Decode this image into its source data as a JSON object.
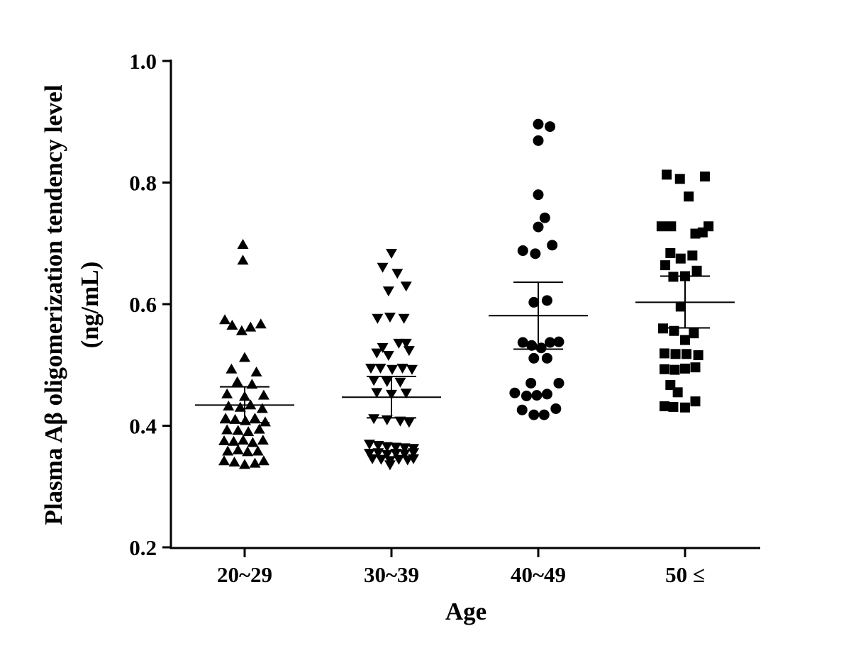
{
  "chart_data": {
    "type": "scatter",
    "xlabel": "Age",
    "ylabel_line1": "Plasma Aβ  oligomerization tendency level",
    "ylabel_line2": "(ng/mL)",
    "ylim": [
      0.2,
      1.0
    ],
    "yticks": [
      0.2,
      0.4,
      0.6,
      0.8,
      1.0
    ],
    "ytick_labels": [
      "0.2",
      "0.4",
      "0.6",
      "0.8",
      "1.0"
    ],
    "categories": [
      "20~29",
      "30~39",
      "40~49",
      "50 ≤"
    ],
    "grid": false,
    "legend": "none",
    "color": "#000000",
    "series": [
      {
        "category": "20~29",
        "marker": "triangle-up",
        "mean": 0.434,
        "sem_upper": 0.464,
        "sem_lower": 0.405,
        "points": [
          [
            -0.012,
            0.698
          ],
          [
            -0.012,
            0.672
          ],
          [
            -0.135,
            0.574
          ],
          [
            -0.085,
            0.565
          ],
          [
            -0.02,
            0.556
          ],
          [
            0.04,
            0.562
          ],
          [
            0.11,
            0.567
          ],
          [
            0.0,
            0.512
          ],
          [
            -0.09,
            0.493
          ],
          [
            0.08,
            0.488
          ],
          [
            -0.05,
            0.472
          ],
          [
            0.05,
            0.468
          ],
          [
            -0.12,
            0.452
          ],
          [
            0.0,
            0.448
          ],
          [
            0.13,
            0.45
          ],
          [
            -0.11,
            0.432
          ],
          [
            -0.03,
            0.43
          ],
          [
            0.04,
            0.434
          ],
          [
            0.12,
            0.428
          ],
          [
            -0.13,
            0.412
          ],
          [
            -0.065,
            0.41
          ],
          [
            0.005,
            0.408
          ],
          [
            0.07,
            0.412
          ],
          [
            0.14,
            0.406
          ],
          [
            -0.12,
            0.393
          ],
          [
            -0.045,
            0.392
          ],
          [
            0.025,
            0.39
          ],
          [
            0.1,
            0.394
          ],
          [
            -0.14,
            0.375
          ],
          [
            -0.075,
            0.374
          ],
          [
            -0.01,
            0.376
          ],
          [
            0.055,
            0.372
          ],
          [
            0.125,
            0.376
          ],
          [
            -0.115,
            0.358
          ],
          [
            -0.045,
            0.36
          ],
          [
            0.02,
            0.357
          ],
          [
            0.09,
            0.358
          ],
          [
            -0.14,
            0.342
          ],
          [
            -0.07,
            0.34
          ],
          [
            0.0,
            0.336
          ],
          [
            0.07,
            0.338
          ],
          [
            0.13,
            0.342
          ]
        ]
      },
      {
        "category": "30~39",
        "marker": "triangle-down",
        "mean": 0.447,
        "sem_upper": 0.481,
        "sem_lower": 0.413,
        "points": [
          [
            0.0,
            0.684
          ],
          [
            -0.06,
            0.661
          ],
          [
            0.04,
            0.651
          ],
          [
            0.1,
            0.63
          ],
          [
            -0.02,
            0.622
          ],
          [
            -0.095,
            0.577
          ],
          [
            -0.01,
            0.579
          ],
          [
            0.085,
            0.577
          ],
          [
            0.1,
            0.536
          ],
          [
            0.05,
            0.536
          ],
          [
            -0.06,
            0.529
          ],
          [
            0.12,
            0.524
          ],
          [
            -0.1,
            0.52
          ],
          [
            -0.02,
            0.516
          ],
          [
            -0.14,
            0.495
          ],
          [
            -0.075,
            0.495
          ],
          [
            0.005,
            0.493
          ],
          [
            0.075,
            0.495
          ],
          [
            0.14,
            0.493
          ],
          [
            -0.12,
            0.475
          ],
          [
            -0.03,
            0.473
          ],
          [
            0.06,
            0.472
          ],
          [
            -0.1,
            0.455
          ],
          [
            0.0,
            0.452
          ],
          [
            0.1,
            0.454
          ],
          [
            -0.12,
            0.412
          ],
          [
            -0.03,
            0.41
          ],
          [
            0.06,
            0.408
          ],
          [
            0.12,
            0.406
          ],
          [
            -0.15,
            0.37
          ],
          [
            -0.09,
            0.368
          ],
          [
            -0.03,
            0.366
          ],
          [
            0.03,
            0.365
          ],
          [
            0.09,
            0.364
          ],
          [
            0.15,
            0.363
          ],
          [
            -0.15,
            0.355
          ],
          [
            -0.09,
            0.356
          ],
          [
            -0.03,
            0.353
          ],
          [
            0.03,
            0.355
          ],
          [
            0.09,
            0.354
          ],
          [
            0.15,
            0.356
          ],
          [
            -0.13,
            0.346
          ],
          [
            -0.07,
            0.345
          ],
          [
            -0.01,
            0.343
          ],
          [
            0.05,
            0.345
          ],
          [
            0.11,
            0.344
          ],
          [
            0.15,
            0.346
          ],
          [
            -0.01,
            0.336
          ]
        ]
      },
      {
        "category": "40~49",
        "marker": "circle",
        "mean": 0.581,
        "sem_upper": 0.636,
        "sem_lower": 0.526,
        "points": [
          [
            0.0,
            0.896
          ],
          [
            0.08,
            0.892
          ],
          [
            0.0,
            0.869
          ],
          [
            0.0,
            0.78
          ],
          [
            0.045,
            0.742
          ],
          [
            0.0,
            0.727
          ],
          [
            -0.105,
            0.688
          ],
          [
            0.095,
            0.697
          ],
          [
            -0.02,
            0.683
          ],
          [
            -0.03,
            0.603
          ],
          [
            0.06,
            0.606
          ],
          [
            -0.105,
            0.537
          ],
          [
            -0.045,
            0.532
          ],
          [
            0.02,
            0.528
          ],
          [
            0.08,
            0.537
          ],
          [
            0.14,
            0.538
          ],
          [
            -0.03,
            0.511
          ],
          [
            0.06,
            0.511
          ],
          [
            -0.16,
            0.454
          ],
          [
            -0.08,
            0.449
          ],
          [
            -0.01,
            0.45
          ],
          [
            0.06,
            0.452
          ],
          [
            -0.05,
            0.47
          ],
          [
            0.14,
            0.47
          ],
          [
            -0.11,
            0.426
          ],
          [
            -0.03,
            0.418
          ],
          [
            0.04,
            0.418
          ],
          [
            0.12,
            0.428
          ]
        ]
      },
      {
        "category": "50 ≤",
        "marker": "square",
        "mean": 0.603,
        "sem_upper": 0.646,
        "sem_lower": 0.561,
        "points": [
          [
            -0.125,
            0.813
          ],
          [
            -0.035,
            0.806
          ],
          [
            0.135,
            0.81
          ],
          [
            0.025,
            0.777
          ],
          [
            -0.16,
            0.728
          ],
          [
            -0.095,
            0.728
          ],
          [
            0.07,
            0.716
          ],
          [
            0.12,
            0.718
          ],
          [
            0.16,
            0.728
          ],
          [
            -0.1,
            0.684
          ],
          [
            -0.03,
            0.675
          ],
          [
            0.05,
            0.68
          ],
          [
            -0.135,
            0.664
          ],
          [
            -0.08,
            0.645
          ],
          [
            0.0,
            0.646
          ],
          [
            0.08,
            0.655
          ],
          [
            -0.03,
            0.596
          ],
          [
            -0.15,
            0.56
          ],
          [
            -0.075,
            0.556
          ],
          [
            0.0,
            0.541
          ],
          [
            0.06,
            0.552
          ],
          [
            -0.14,
            0.519
          ],
          [
            -0.065,
            0.518
          ],
          [
            0.01,
            0.518
          ],
          [
            0.09,
            0.516
          ],
          [
            -0.14,
            0.493
          ],
          [
            -0.07,
            0.492
          ],
          [
            0.0,
            0.494
          ],
          [
            0.07,
            0.496
          ],
          [
            -0.1,
            0.467
          ],
          [
            -0.05,
            0.455
          ],
          [
            -0.08,
            0.431
          ],
          [
            0.0,
            0.43
          ],
          [
            0.07,
            0.44
          ],
          [
            -0.14,
            0.432
          ]
        ]
      }
    ]
  }
}
